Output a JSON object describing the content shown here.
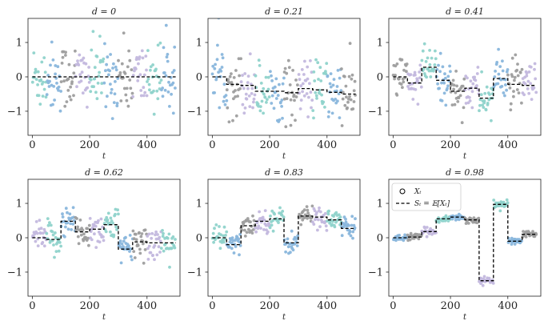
{
  "chart_data": {
    "type": "scatter",
    "figure": "six scatter panels of X_t vs t with piecewise-constant mean S_t",
    "xlabel": "t",
    "xlim": [
      -15,
      515
    ],
    "ylim": [
      -1.7,
      1.7
    ],
    "xticks": [
      0,
      200,
      400
    ],
    "yticks": [
      -1,
      0,
      1
    ],
    "point_colors": [
      "#8fd3cb",
      "#89b6dc",
      "#9e9e9e",
      "#c3b8de"
    ],
    "legend": {
      "items": [
        {
          "symbol": "circle",
          "label": "X_t",
          "display": "Xₜ"
        },
        {
          "symbol": "dashed-line",
          "label": "S_t = E[X_t]",
          "display": "Sₜ = 𝔼[Xₜ]"
        }
      ],
      "panel": 5
    },
    "panels": [
      {
        "title": "d = 0",
        "segments": [
          [
            0,
            50,
            0
          ],
          [
            50,
            100,
            0
          ],
          [
            100,
            150,
            0
          ],
          [
            150,
            200,
            0
          ],
          [
            200,
            250,
            0
          ],
          [
            250,
            300,
            0
          ],
          [
            300,
            350,
            0
          ],
          [
            350,
            400,
            0
          ],
          [
            400,
            450,
            0
          ],
          [
            450,
            500,
            0
          ]
        ],
        "noise": 0.5
      },
      {
        "title": "d = 0.21",
        "segments": [
          [
            0,
            50,
            0
          ],
          [
            50,
            100,
            -0.22
          ],
          [
            100,
            150,
            -0.25
          ],
          [
            150,
            200,
            -0.42
          ],
          [
            200,
            250,
            -0.42
          ],
          [
            250,
            300,
            -0.46
          ],
          [
            300,
            350,
            -0.34
          ],
          [
            350,
            400,
            -0.38
          ],
          [
            400,
            450,
            -0.45
          ],
          [
            450,
            500,
            -0.5
          ]
        ],
        "noise": 0.45
      },
      {
        "title": "d = 0.41",
        "segments": [
          [
            0,
            50,
            0
          ],
          [
            50,
            100,
            -0.18
          ],
          [
            100,
            150,
            0.28
          ],
          [
            150,
            200,
            -0.1
          ],
          [
            200,
            250,
            -0.42
          ],
          [
            250,
            300,
            -0.33
          ],
          [
            300,
            350,
            -0.62
          ],
          [
            350,
            400,
            -0.05
          ],
          [
            400,
            450,
            -0.22
          ],
          [
            450,
            500,
            -0.25
          ]
        ],
        "noise": 0.32
      },
      {
        "title": "d = 0.62",
        "segments": [
          [
            0,
            50,
            0
          ],
          [
            50,
            100,
            -0.05
          ],
          [
            100,
            150,
            0.48
          ],
          [
            150,
            200,
            0.17
          ],
          [
            200,
            250,
            0.25
          ],
          [
            250,
            300,
            0.38
          ],
          [
            300,
            350,
            -0.33
          ],
          [
            350,
            400,
            -0.12
          ],
          [
            400,
            450,
            -0.15
          ],
          [
            450,
            500,
            -0.15
          ]
        ],
        "noise": 0.25
      },
      {
        "title": "d = 0.83",
        "segments": [
          [
            0,
            50,
            0
          ],
          [
            50,
            100,
            -0.2
          ],
          [
            100,
            150,
            0.35
          ],
          [
            150,
            200,
            0.48
          ],
          [
            200,
            250,
            0.55
          ],
          [
            250,
            300,
            -0.15
          ],
          [
            300,
            350,
            0.63
          ],
          [
            350,
            400,
            0.6
          ],
          [
            400,
            450,
            0.52
          ],
          [
            450,
            500,
            0.27
          ]
        ],
        "noise": 0.16
      },
      {
        "title": "d = 0.98",
        "segments": [
          [
            0,
            50,
            0
          ],
          [
            50,
            100,
            0.02
          ],
          [
            100,
            150,
            0.18
          ],
          [
            150,
            200,
            0.55
          ],
          [
            200,
            250,
            0.6
          ],
          [
            250,
            300,
            0.52
          ],
          [
            300,
            350,
            -1.25
          ],
          [
            350,
            400,
            0.97
          ],
          [
            400,
            450,
            -0.1
          ],
          [
            450,
            500,
            0.1
          ]
        ],
        "noise": 0.05
      }
    ]
  }
}
